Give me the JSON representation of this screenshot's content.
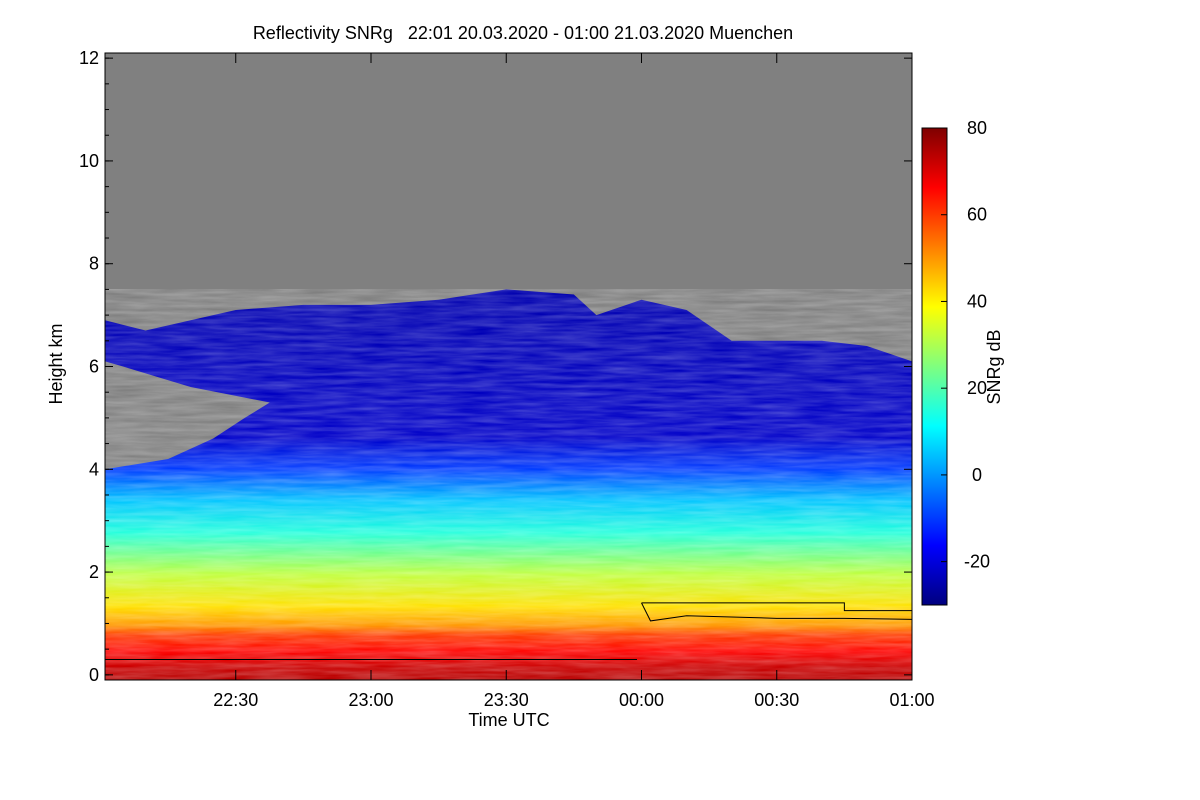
{
  "chart_data": {
    "type": "heatmap",
    "title": "Reflectivity SNRg   22:01 20.03.2020 - 01:00 21.03.2020 Muenchen",
    "xlabel": "Time UTC",
    "ylabel": "Height km",
    "xlim": [
      "22:01",
      "01:00"
    ],
    "ylim": [
      -0.1,
      12.1
    ],
    "x_ticks": [
      "22:30",
      "23:00",
      "23:30",
      "00:00",
      "00:30",
      "01:00"
    ],
    "y_ticks": [
      "0",
      "2",
      "4",
      "6",
      "8",
      "10",
      "12"
    ],
    "colorbar": {
      "label": "SNRg dB",
      "range": [
        -30,
        80
      ],
      "ticks": [
        "-20",
        "0",
        "20",
        "40",
        "60",
        "80"
      ],
      "colors": [
        "#00007f",
        "#0000ff",
        "#007fff",
        "#00ffff",
        "#7fff7f",
        "#ffff00",
        "#ff7f00",
        "#ff0000",
        "#7f0000"
      ]
    },
    "background_color": "#808080",
    "cloud_top_km": [
      {
        "t": "22:01",
        "h": 6.9
      },
      {
        "t": "22:10",
        "h": 6.7
      },
      {
        "t": "22:20",
        "h": 6.9
      },
      {
        "t": "22:30",
        "h": 7.1
      },
      {
        "t": "22:45",
        "h": 7.2
      },
      {
        "t": "23:00",
        "h": 7.2
      },
      {
        "t": "23:15",
        "h": 7.3
      },
      {
        "t": "23:30",
        "h": 7.5
      },
      {
        "t": "23:45",
        "h": 7.4
      },
      {
        "t": "23:50",
        "h": 7.0
      },
      {
        "t": "00:00",
        "h": 7.3
      },
      {
        "t": "00:10",
        "h": 7.1
      },
      {
        "t": "00:20",
        "h": 6.5
      },
      {
        "t": "00:30",
        "h": 6.5
      },
      {
        "t": "00:40",
        "h": 6.5
      },
      {
        "t": "00:50",
        "h": 6.4
      },
      {
        "t": "01:00",
        "h": 6.1
      }
    ],
    "cloud_base_km": [
      {
        "t": "22:01",
        "h": 4.0
      },
      {
        "t": "22:15",
        "h": 4.2
      },
      {
        "t": "22:25",
        "h": 4.6
      },
      {
        "t": "22:32",
        "h": 5.0
      }
    ],
    "low_layer_line": {
      "t_start": "22:01",
      "t_end": "23:59",
      "h": 0.3
    },
    "detection_line": [
      {
        "t": "00:00",
        "h": 1.4
      },
      {
        "t": "00:45",
        "h": 1.4
      },
      {
        "t": "00:45",
        "h": 1.25
      },
      {
        "t": "01:00",
        "h": 1.25
      }
    ],
    "detection_line_lower": [
      {
        "t": "00:00",
        "h": 1.4
      },
      {
        "t": "00:02",
        "h": 1.05
      },
      {
        "t": "00:10",
        "h": 1.15
      },
      {
        "t": "00:30",
        "h": 1.1
      },
      {
        "t": "00:45",
        "h": 1.1
      },
      {
        "t": "01:00",
        "h": 1.08
      }
    ]
  }
}
